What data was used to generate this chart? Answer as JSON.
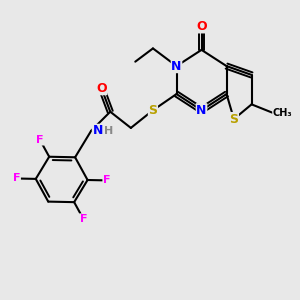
{
  "bg_color": "#e8e8e8",
  "atom_colors": {
    "N": "#0000ff",
    "O": "#ff0000",
    "S": "#b8a000",
    "F": "#ff00ff",
    "H": "#888888",
    "C": "#000000"
  },
  "bond_color": "#000000",
  "font_size": 9.0,
  "fig_size": [
    3.0,
    3.0
  ],
  "dpi": 100
}
